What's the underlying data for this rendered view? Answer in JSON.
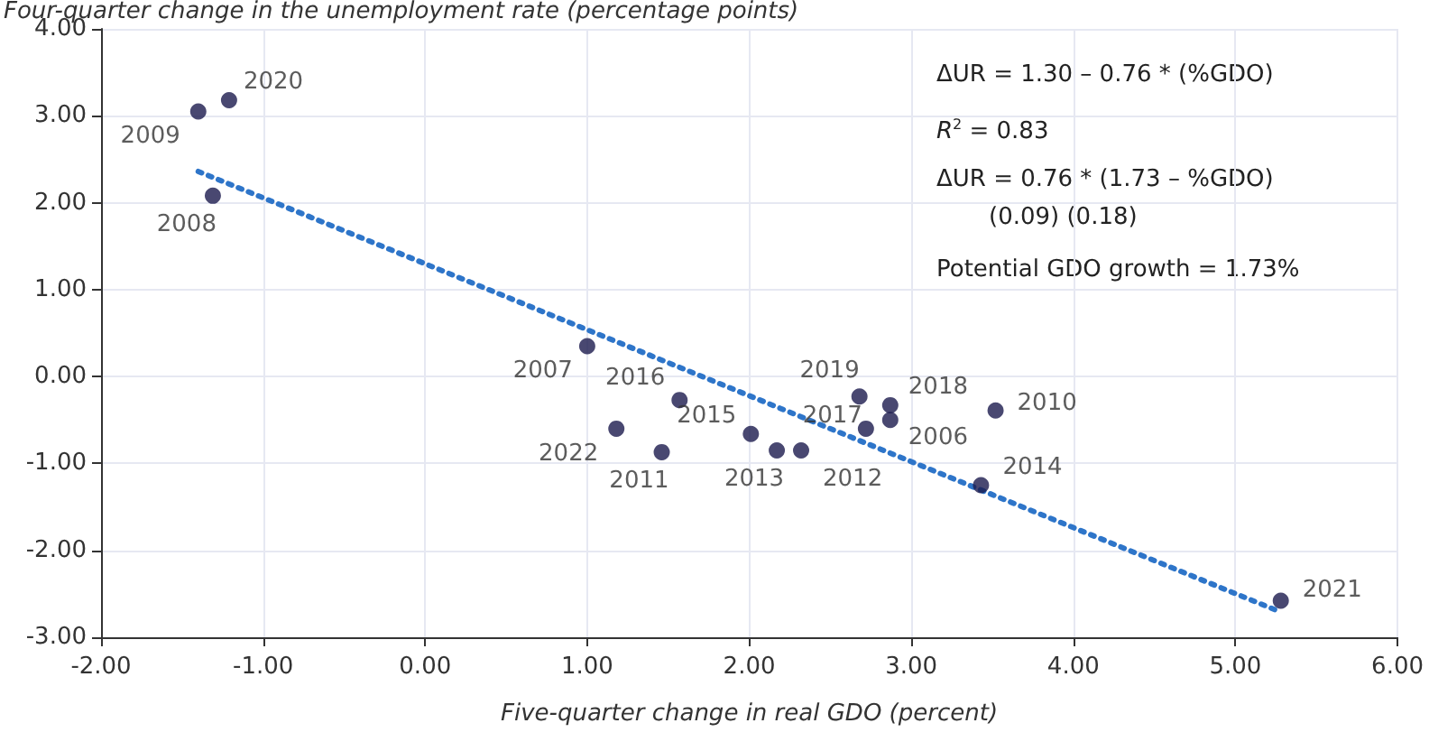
{
  "chart_data": {
    "type": "scatter",
    "ylabel": "Four-quarter change in the unemployment rate (percentage points)",
    "xlabel": "Five-quarter change in real GDO (percent)",
    "series": [
      {
        "name": "2009",
        "color": "#1c1a4e",
        "x": [
          -1.4
        ],
        "values": [
          3.05
        ]
      },
      {
        "name": "2020",
        "color": "#1c1a4e",
        "x": [
          -1.21
        ],
        "values": [
          3.18
        ]
      },
      {
        "name": "2008",
        "color": "#1c1a4e",
        "x": [
          -1.31
        ],
        "values": [
          2.08
        ]
      },
      {
        "name": "2007",
        "color": "#1c1a4e",
        "x": [
          1.0
        ],
        "values": [
          0.35
        ]
      },
      {
        "name": "2016",
        "color": "#1c1a4e",
        "x": [
          1.57
        ],
        "values": [
          -0.27
        ]
      },
      {
        "name": "2022",
        "color": "#1c1a4e",
        "x": [
          1.18
        ],
        "values": [
          -0.6
        ]
      },
      {
        "name": "2011",
        "color": "#1c1a4e",
        "x": [
          1.46
        ],
        "values": [
          -0.87
        ]
      },
      {
        "name": "2015",
        "color": "#1c1a4e",
        "x": [
          2.01
        ],
        "values": [
          -0.66
        ]
      },
      {
        "name": "2013",
        "color": "#1c1a4e",
        "x": [
          2.17
        ],
        "values": [
          -0.85
        ]
      },
      {
        "name": "2012",
        "color": "#1c1a4e",
        "x": [
          2.32
        ],
        "values": [
          -0.85
        ]
      },
      {
        "name": "2019",
        "color": "#1c1a4e",
        "x": [
          2.68
        ],
        "values": [
          -0.23
        ]
      },
      {
        "name": "2017",
        "color": "#1c1a4e",
        "x": [
          2.72
        ],
        "values": [
          -0.6
        ]
      },
      {
        "name": "2018",
        "color": "#1c1a4e",
        "x": [
          2.87
        ],
        "values": [
          -0.33
        ]
      },
      {
        "name": "2006",
        "color": "#1c1a4e",
        "x": [
          2.87
        ],
        "values": [
          -0.5
        ]
      },
      {
        "name": "2010",
        "color": "#1c1a4e",
        "x": [
          3.52
        ],
        "values": [
          -0.39
        ]
      },
      {
        "name": "2014",
        "color": "#1c1a4e",
        "x": [
          3.43
        ],
        "values": [
          -1.25
        ]
      },
      {
        "name": "2021",
        "color": "#1c1a4e",
        "x": [
          5.28
        ],
        "values": [
          -2.58
        ]
      },
      {
        "type": "line",
        "color": "#2e75c9",
        "line_style": "dotted",
        "marker": "none",
        "x": [
          -1.4,
          5.28
        ],
        "values": [
          2.36,
          -2.71
        ]
      }
    ],
    "marker": "circle",
    "grid": true,
    "xlim": [
      -2,
      6
    ],
    "xticks": [
      {
        "value": -2,
        "label": "-2.00"
      },
      {
        "value": -1,
        "label": "-1.00"
      },
      {
        "value": 0,
        "label": "0.00"
      },
      {
        "value": 1,
        "label": "1.00"
      },
      {
        "value": 2,
        "label": "2.00"
      },
      {
        "value": 3,
        "label": "3.00"
      },
      {
        "value": 4,
        "label": "4.00"
      },
      {
        "value": 5,
        "label": "5.00"
      },
      {
        "value": 6,
        "label": "6.00"
      }
    ],
    "ylim": [
      -3,
      4
    ],
    "yticks": [
      {
        "value": -3,
        "label": "-3.00"
      },
      {
        "value": -2,
        "label": "-2.00"
      },
      {
        "value": -1,
        "label": "-1.00"
      },
      {
        "value": 0,
        "label": "0.00"
      },
      {
        "value": 1,
        "label": "1.00"
      },
      {
        "value": 2,
        "label": "2.00"
      },
      {
        "value": 3,
        "label": "3.00"
      },
      {
        "value": 4,
        "label": "4.00"
      }
    ],
    "annotations": [
      "ΔUR = 1.30 – 0.76 * (%GDO)",
      "R$^{2}$ = 0.83",
      "ΔUR = 0.76 * (1.73 – %GDO)",
      "(0.09) (0.18)",
      "Potential GDO growth = 1.73%"
    ]
  }
}
